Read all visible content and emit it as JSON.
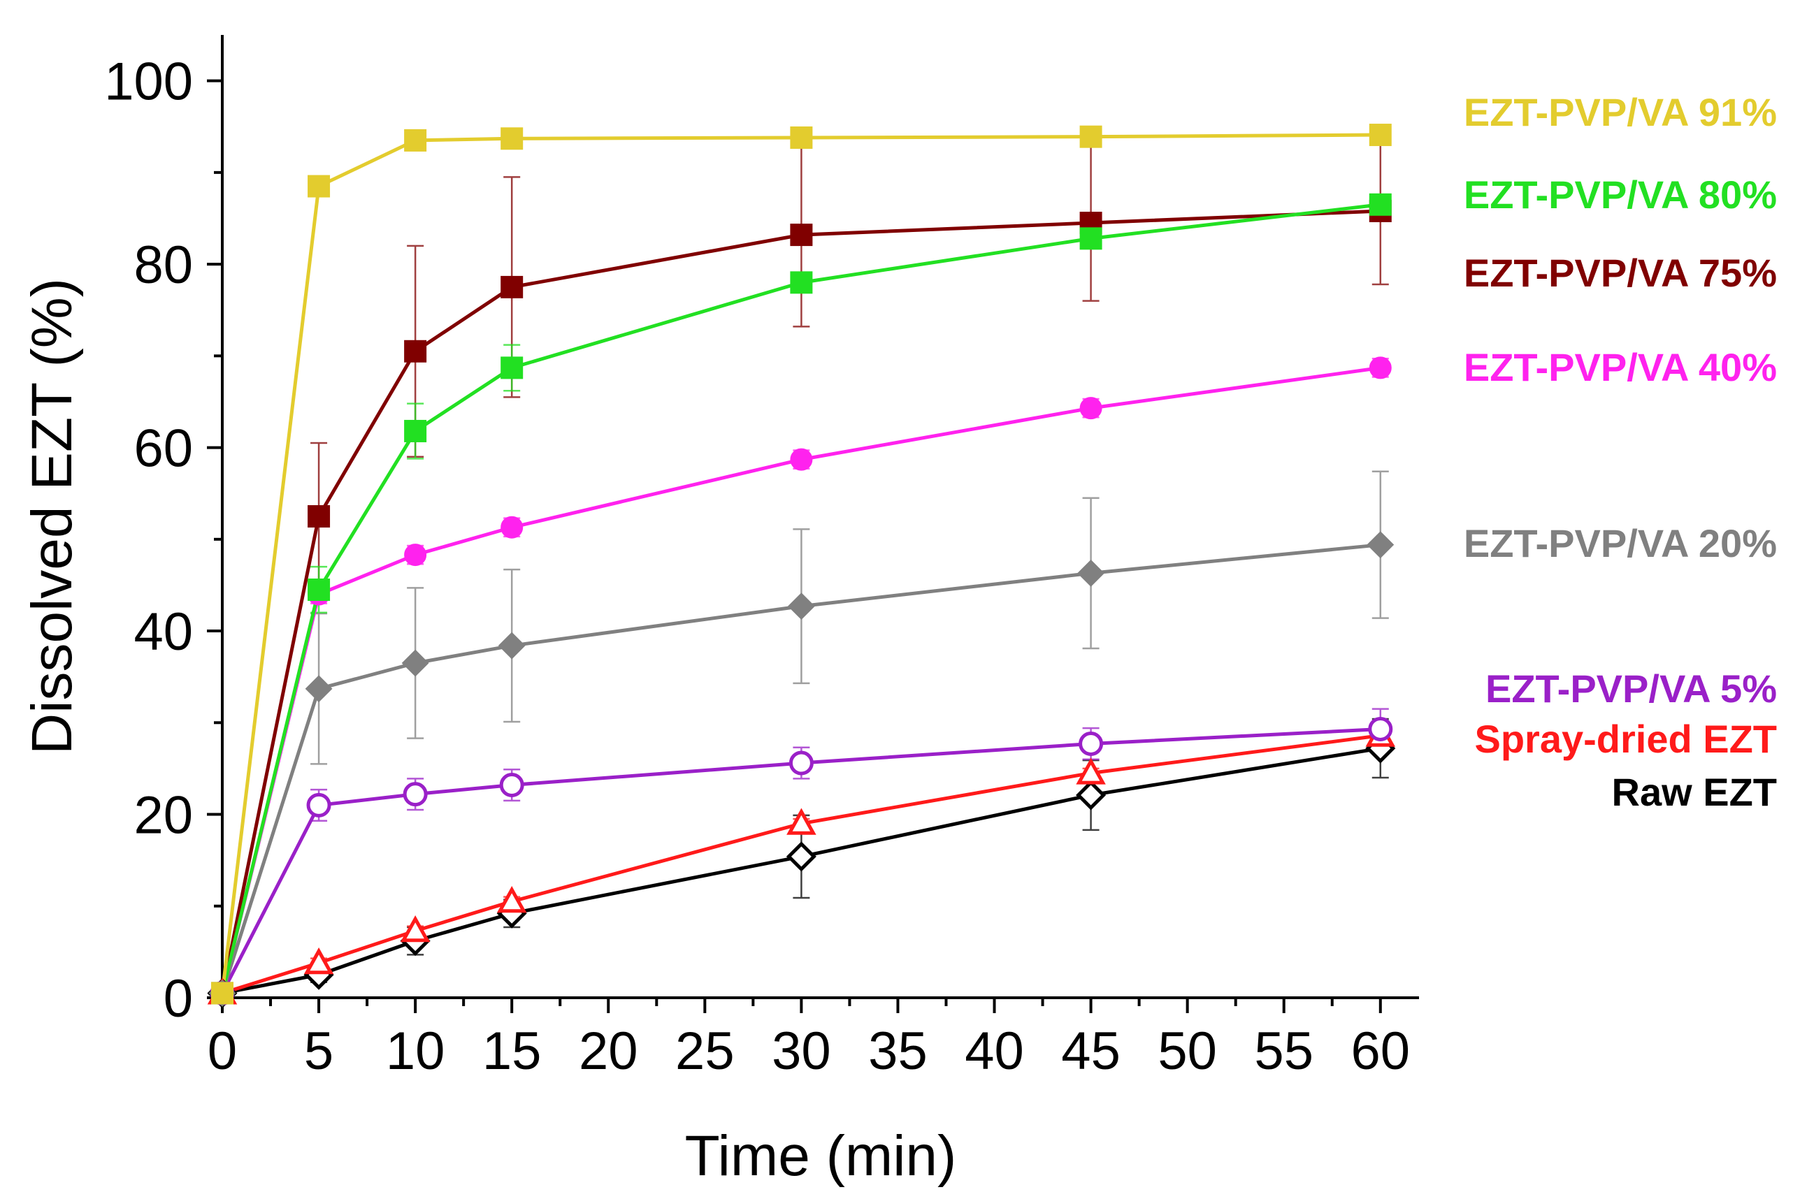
{
  "chart_data": {
    "type": "line",
    "title": "",
    "xlabel": "Time (min)",
    "ylabel": "Dissolved EZT (%)",
    "xlim": [
      0,
      62
    ],
    "ylim": [
      0,
      105
    ],
    "xticks": [
      0,
      5,
      10,
      15,
      20,
      25,
      30,
      35,
      40,
      45,
      50,
      55,
      60
    ],
    "yticks": [
      0,
      20,
      40,
      60,
      80,
      100
    ],
    "grid": false,
    "legend": "right",
    "series": [
      {
        "name": "EZT-PVP/VA 91%",
        "color": "#E3CC2E",
        "marker": "square",
        "filled": true,
        "x": [
          0,
          5,
          10,
          15,
          30,
          45,
          60
        ],
        "y": [
          0.5,
          88.5,
          93.5,
          93.7,
          93.8,
          93.9,
          94.1
        ],
        "err": [
          0,
          0,
          0,
          0,
          0,
          0,
          0
        ]
      },
      {
        "name": "EZT-PVP/VA 80%",
        "color": "#22E022",
        "marker": "square",
        "filled": true,
        "x": [
          0,
          5,
          10,
          15,
          30,
          45,
          60
        ],
        "y": [
          0.5,
          44.5,
          61.8,
          68.7,
          78.0,
          82.8,
          86.5
        ],
        "err": [
          0,
          2.5,
          3.0,
          2.5,
          0,
          0,
          0
        ]
      },
      {
        "name": "EZT-PVP/VA 75%",
        "color": "#800000",
        "marker": "square",
        "filled": true,
        "x": [
          0,
          5,
          10,
          15,
          30,
          45,
          60
        ],
        "y": [
          0.5,
          52.5,
          70.5,
          77.5,
          83.2,
          84.5,
          85.8
        ],
        "err": [
          0,
          8.0,
          11.5,
          12.0,
          10.0,
          8.5,
          8.0
        ]
      },
      {
        "name": "EZT-PVP/VA 40%",
        "color": "#FF22EE",
        "marker": "circle",
        "filled": true,
        "x": [
          0,
          5,
          10,
          15,
          30,
          45,
          60
        ],
        "y": [
          0.5,
          44.0,
          48.3,
          51.3,
          58.7,
          64.3,
          68.7
        ],
        "err": [
          0,
          1.0,
          1.0,
          1.0,
          1.0,
          1.0,
          1.0
        ]
      },
      {
        "name": "EZT-PVP/VA 20%",
        "color": "#808080",
        "marker": "diamond",
        "filled": true,
        "x": [
          0,
          5,
          10,
          15,
          30,
          45,
          60
        ],
        "y": [
          0.5,
          33.7,
          36.5,
          38.4,
          42.7,
          46.3,
          49.4
        ],
        "err": [
          0,
          8.2,
          8.2,
          8.3,
          8.4,
          8.2,
          8.0
        ]
      },
      {
        "name": "EZT-PVP/VA 5%",
        "color": "#9A20C8",
        "marker": "circle",
        "filled": false,
        "x": [
          0,
          5,
          10,
          15,
          30,
          45,
          60
        ],
        "y": [
          0.5,
          21.0,
          22.2,
          23.2,
          25.6,
          27.7,
          29.3
        ],
        "err": [
          0,
          1.7,
          1.7,
          1.7,
          1.7,
          1.7,
          2.2
        ]
      },
      {
        "name": "Spray-dried EZT",
        "color": "#FF1A1A",
        "marker": "triangle",
        "filled": false,
        "x": [
          0,
          5,
          10,
          15,
          30,
          45,
          60
        ],
        "y": [
          0.5,
          3.8,
          7.3,
          10.5,
          19.0,
          24.5,
          28.6
        ],
        "err": [
          0,
          0.5,
          0.5,
          0.5,
          0.5,
          0.5,
          0.5
        ]
      },
      {
        "name": "Raw EZT",
        "color": "#000000",
        "marker": "diamond",
        "filled": false,
        "x": [
          0,
          5,
          10,
          15,
          30,
          45,
          60
        ],
        "y": [
          0.5,
          2.5,
          6.2,
          9.2,
          15.4,
          22.1,
          27.2
        ],
        "err": [
          0,
          0.8,
          1.5,
          1.5,
          4.5,
          3.8,
          3.2
        ]
      }
    ]
  }
}
